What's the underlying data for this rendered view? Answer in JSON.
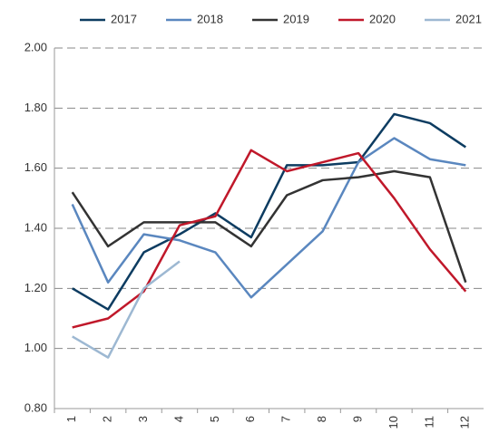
{
  "chart_data": {
    "type": "line",
    "categories": [
      "1",
      "2",
      "3",
      "4",
      "5",
      "6",
      "7",
      "8",
      "9",
      "10",
      "11",
      "12"
    ],
    "series": [
      {
        "name": "2017",
        "color": "#0d3c61",
        "values": [
          1.2,
          1.13,
          1.32,
          1.38,
          1.45,
          1.37,
          1.61,
          1.61,
          1.62,
          1.78,
          1.75,
          1.67
        ]
      },
      {
        "name": "2018",
        "color": "#5a87bf",
        "values": [
          1.48,
          1.22,
          1.38,
          1.36,
          1.32,
          1.17,
          1.28,
          1.39,
          1.62,
          1.7,
          1.63,
          1.61
        ]
      },
      {
        "name": "2019",
        "color": "#333333",
        "values": [
          1.52,
          1.34,
          1.42,
          1.42,
          1.42,
          1.34,
          1.51,
          1.56,
          1.57,
          1.59,
          1.57,
          1.22
        ]
      },
      {
        "name": "2020",
        "color": "#c0182a",
        "values": [
          1.07,
          1.1,
          1.19,
          1.41,
          1.44,
          1.66,
          1.59,
          1.62,
          1.65,
          1.5,
          1.33,
          1.19
        ]
      },
      {
        "name": "2021",
        "color": "#9db8d2",
        "values": [
          1.04,
          0.97,
          1.2,
          1.29,
          null,
          null,
          null,
          null,
          null,
          null,
          null,
          null
        ]
      }
    ],
    "ylim": [
      0.8,
      2.0
    ],
    "yticks": [
      {
        "value": 0.8,
        "label": "0.80"
      },
      {
        "value": 1.0,
        "label": "1.00"
      },
      {
        "value": 1.2,
        "label": "1.20"
      },
      {
        "value": 1.4,
        "label": "1.40"
      },
      {
        "value": 1.6,
        "label": "1.60"
      },
      {
        "value": 1.8,
        "label": "1.80"
      },
      {
        "value": 2.0,
        "label": "2.00"
      }
    ],
    "grid": true,
    "legend": "top"
  }
}
